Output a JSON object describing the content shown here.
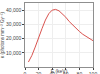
{
  "chart_data": {
    "type": "line",
    "xlabel": "E (keV)",
    "ylabel": "κ (photons mm⁻² Gy⁻¹)",
    "x": [
      5,
      10,
      15,
      20,
      25,
      30,
      35,
      40,
      45,
      50,
      55,
      60,
      65,
      70,
      75,
      80,
      85,
      90,
      95,
      100
    ],
    "values": [
      3500,
      8000,
      14000,
      21000,
      27000,
      33000,
      37500,
      40000,
      40500,
      39500,
      37500,
      35000,
      32000,
      29500,
      27000,
      25000,
      23000,
      21500,
      20000,
      18500
    ],
    "color": "#d9534f",
    "xlim": [
      0,
      100
    ],
    "ylim": [
      0,
      45000
    ],
    "xticks": [
      0,
      20,
      40,
      60,
      80,
      100
    ],
    "yticks": [
      {
        "value": 10000,
        "label": "10,000"
      },
      {
        "value": 20000,
        "label": "20,000"
      },
      {
        "value": 30000,
        "label": "30,000"
      },
      {
        "value": 40000,
        "label": "40,000"
      }
    ],
    "grid": true
  }
}
